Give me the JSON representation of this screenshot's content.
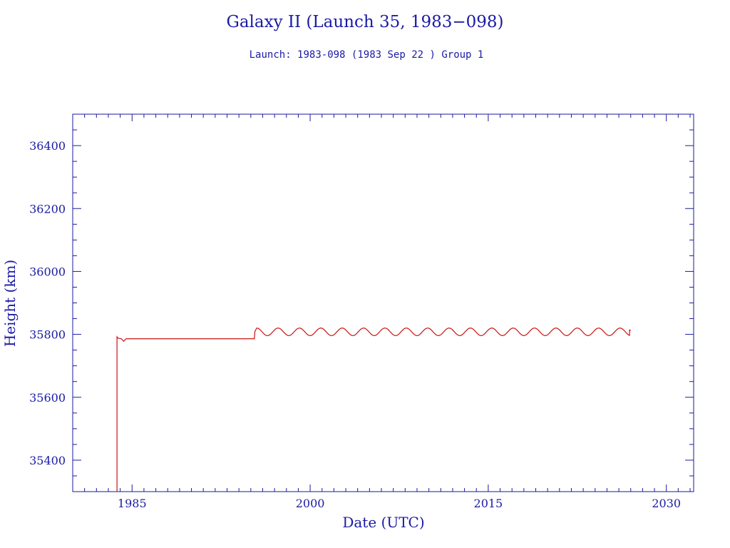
{
  "chart_data": {
    "type": "line",
    "title": "Galaxy II (Launch 35, 1983−098)",
    "subtitle": "Launch: 1983-098  (1983 Sep 22 )  Group 1",
    "xlabel": "Date (UTC)",
    "ylabel": "Height (km)",
    "xlim": [
      1980,
      2032.3
    ],
    "ylim": [
      35300,
      36500
    ],
    "xticks": [
      1985,
      2000,
      2015,
      2030
    ],
    "yticks": [
      35400,
      35600,
      35800,
      36000,
      36200,
      36400
    ],
    "grid": false,
    "series": [
      {
        "color": "#cc1111",
        "segments": [
          {
            "kind": "line",
            "points": [
              [
                1983.73,
                35300
              ],
              [
                1983.73,
                35792
              ],
              [
                1983.8,
                35788
              ],
              [
                1984.1,
                35786
              ],
              [
                1984.3,
                35778
              ],
              [
                1984.5,
                35786
              ],
              [
                1990.0,
                35786
              ],
              [
                1995.3,
                35786
              ],
              [
                1995.35,
                35810
              ],
              [
                1995.5,
                35820
              ]
            ]
          },
          {
            "kind": "oscillation",
            "x0": 1995.5,
            "x1": 2026.9,
            "center": 35808,
            "amplitude": 12,
            "period": 1.8
          },
          {
            "kind": "line",
            "points": [
              [
                2026.9,
                35814
              ],
              [
                2027.0,
                35812
              ]
            ]
          }
        ]
      }
    ]
  },
  "colors": {
    "axis": "#1a1aa6",
    "series": "#cc1111",
    "background": "#ffffff"
  }
}
